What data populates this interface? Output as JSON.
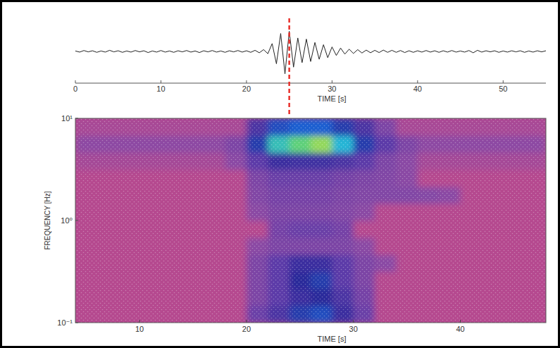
{
  "chart_data": [
    {
      "type": "line",
      "xlabel": "TIME [s]",
      "xlim": [
        0,
        55
      ],
      "xticks": [
        0,
        10,
        20,
        30,
        40,
        50
      ],
      "ylim": [
        -1.1,
        1.1
      ],
      "tick_labels": "x",
      "grid": false,
      "color": "#222222",
      "event_time": 25,
      "event_color": "#e8302a",
      "x": [
        0,
        0.5,
        1,
        1.5,
        2,
        2.5,
        3,
        3.5,
        4,
        4.5,
        5,
        5.5,
        6,
        6.5,
        7,
        7.5,
        8,
        8.5,
        9,
        9.5,
        10,
        10.5,
        11,
        11.5,
        12,
        12.5,
        13,
        13.5,
        14,
        14.5,
        15,
        15.5,
        16,
        16.5,
        17,
        17.5,
        18,
        18.5,
        19,
        19.5,
        20,
        20.5,
        21,
        21.5,
        22,
        22.5,
        23,
        23.5,
        24,
        24.5,
        25,
        25.5,
        26,
        26.5,
        27,
        27.5,
        28,
        28.5,
        29,
        29.5,
        30,
        30.5,
        31,
        31.5,
        32,
        32.5,
        33,
        33.5,
        34,
        34.5,
        35,
        35.5,
        36,
        36.5,
        37,
        37.5,
        38,
        38.5,
        39,
        39.5,
        40,
        40.5,
        41,
        41.5,
        42,
        42.5,
        43,
        43.5,
        44,
        44.5,
        45,
        45.5,
        46,
        46.5,
        47,
        47.5,
        48,
        48.5,
        49,
        49.5,
        50,
        50.5,
        51,
        51.5,
        52,
        52.5,
        53,
        53.5,
        54,
        54.5,
        55
      ],
      "values": [
        0.02,
        -0.03,
        0.04,
        -0.02,
        0.03,
        -0.04,
        0.02,
        -0.03,
        0.05,
        -0.02,
        0.03,
        -0.04,
        0.02,
        -0.03,
        0.04,
        -0.02,
        0.03,
        -0.05,
        0.02,
        -0.03,
        0.04,
        -0.03,
        0.02,
        -0.04,
        0.03,
        -0.02,
        0.04,
        -0.03,
        0.02,
        -0.05,
        0.03,
        -0.02,
        0.04,
        -0.03,
        0.02,
        -0.04,
        0.03,
        -0.02,
        0.04,
        -0.03,
        0.03,
        -0.04,
        0.05,
        -0.06,
        0.08,
        -0.1,
        0.35,
        -0.55,
        0.8,
        -1.0,
        0.9,
        -0.7,
        0.6,
        -0.5,
        0.55,
        -0.45,
        0.4,
        -0.35,
        0.3,
        -0.28,
        0.2,
        -0.18,
        0.15,
        -0.12,
        0.1,
        -0.09,
        0.08,
        -0.07,
        0.06,
        -0.06,
        0.05,
        -0.05,
        0.06,
        -0.04,
        0.05,
        -0.04,
        0.04,
        -0.05,
        0.03,
        -0.04,
        0.03,
        -0.03,
        0.04,
        -0.03,
        0.03,
        -0.04,
        0.03,
        -0.03,
        0.04,
        -0.03,
        0.02,
        -0.03,
        0.04,
        -0.06,
        0.05,
        -0.03,
        0.03,
        -0.02,
        0.03,
        -0.04,
        0.02,
        -0.03,
        0.03,
        -0.02,
        0.03,
        -0.04,
        0.02,
        -0.03,
        0.03,
        -0.02,
        0.03
      ]
    },
    {
      "type": "heatmap",
      "xlabel": "TIME [s]",
      "ylabel": "FREQUENCY [Hz]",
      "xlim": [
        4,
        48
      ],
      "xticks": [
        10,
        20,
        30,
        40
      ],
      "ylim": [
        0.1,
        10
      ],
      "yticks": [
        {
          "value": 0.1,
          "label": "10⁻¹"
        },
        {
          "value": 1,
          "label": "10⁰"
        },
        {
          "value": 10,
          "label": "10¹"
        }
      ],
      "log": "y",
      "grid": false,
      "x_edges": [
        4,
        6,
        8,
        10,
        12,
        14,
        16,
        18,
        20,
        22,
        24,
        26,
        28,
        30,
        32,
        34,
        36,
        38,
        40,
        42,
        44,
        46,
        48
      ],
      "y_edges": [
        0.1,
        0.147,
        0.215,
        0.316,
        0.464,
        0.681,
        1,
        1.47,
        2.15,
        3.16,
        4.64,
        6.81,
        10
      ],
      "zlim": [
        0,
        1
      ],
      "cells": [
        [
          0,
          0,
          0,
          0,
          0,
          0,
          0,
          0,
          0.25,
          0.35,
          0.5,
          0.55,
          0.4,
          0.25,
          0,
          0,
          0,
          0,
          0,
          0,
          0,
          0
        ],
        [
          0,
          0,
          0,
          0,
          0,
          0,
          0,
          0,
          0.2,
          0.3,
          0.4,
          0.45,
          0.35,
          0.22,
          0,
          0,
          0,
          0,
          0,
          0,
          0,
          0
        ],
        [
          0,
          0,
          0,
          0,
          0,
          0,
          0,
          0,
          0.2,
          0.3,
          0.45,
          0.5,
          0.3,
          0.2,
          0,
          0,
          0,
          0,
          0,
          0,
          0,
          0
        ],
        [
          0,
          0,
          0,
          0,
          0,
          0,
          0,
          0,
          0.2,
          0.3,
          0.4,
          0.4,
          0.3,
          0.2,
          0.15,
          0,
          0,
          0,
          0,
          0,
          0,
          0
        ],
        [
          0,
          0,
          0,
          0,
          0,
          0,
          0,
          0,
          0.15,
          0.2,
          0.2,
          0.2,
          0.2,
          0.15,
          0,
          0,
          0,
          0,
          0,
          0,
          0,
          0
        ],
        [
          0,
          0,
          0,
          0,
          0,
          0,
          0,
          0,
          0,
          0.22,
          0.25,
          0.25,
          0.22,
          0,
          0,
          0,
          0,
          0,
          0,
          0,
          0,
          0
        ],
        [
          0,
          0,
          0,
          0,
          0,
          0,
          0,
          0,
          0.15,
          0.2,
          0.2,
          0.2,
          0.18,
          0.15,
          0,
          0,
          0,
          0,
          0,
          0,
          0,
          0
        ],
        [
          0,
          0,
          0,
          0,
          0,
          0,
          0,
          0,
          0.18,
          0.22,
          0.22,
          0.22,
          0.2,
          0.18,
          0.18,
          0.18,
          0.17,
          0.15,
          0,
          0,
          0,
          0
        ],
        [
          0,
          0,
          0,
          0,
          0,
          0,
          0,
          0,
          0.2,
          0.25,
          0.25,
          0.25,
          0.22,
          0.2,
          0.18,
          0.15,
          0,
          0,
          0,
          0,
          0,
          0
        ],
        [
          0.06,
          0.06,
          0.06,
          0.06,
          0.06,
          0.06,
          0.06,
          0.15,
          0.3,
          0.4,
          0.38,
          0.38,
          0.35,
          0.3,
          0.2,
          0.15,
          0.06,
          0.06,
          0.06,
          0.06,
          0.06,
          0.06
        ],
        [
          0.14,
          0.14,
          0.14,
          0.14,
          0.14,
          0.14,
          0.14,
          0.2,
          0.5,
          0.8,
          0.9,
          0.95,
          0.75,
          0.5,
          0.3,
          0.2,
          0.14,
          0.14,
          0.14,
          0.14,
          0.14,
          0.14
        ],
        [
          0.05,
          0.05,
          0.05,
          0.05,
          0.05,
          0.05,
          0.05,
          0.05,
          0.35,
          0.55,
          0.6,
          0.6,
          0.5,
          0.35,
          0.2,
          0.05,
          0.05,
          0.05,
          0.05,
          0.05,
          0.05,
          0.05
        ]
      ]
    }
  ]
}
